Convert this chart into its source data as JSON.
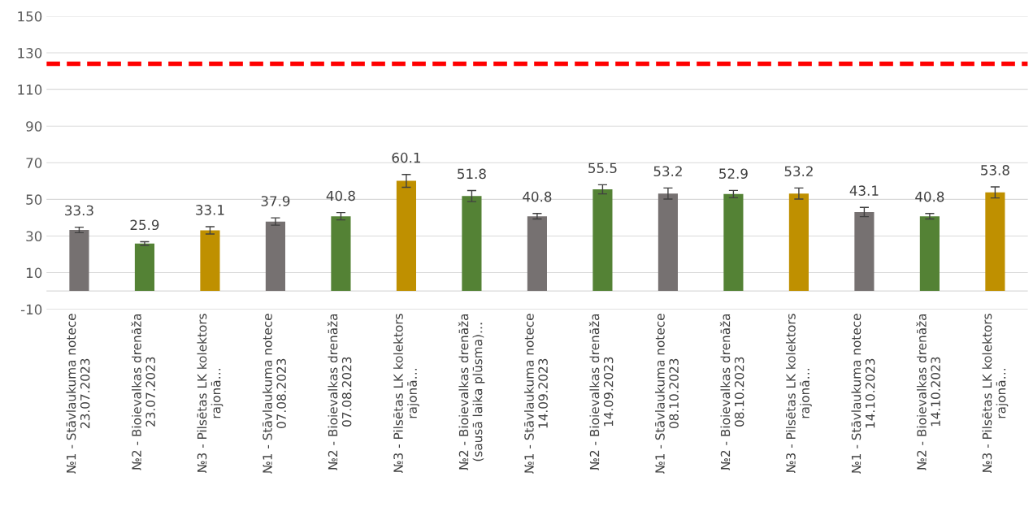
{
  "chart_data": {
    "type": "bar",
    "categories": [
      "№1 - Stāvlaukuma notece\n23.07.2023",
      "№2 - Bioievalkas drenāža\n23.07.2023",
      "№3 - Pilsētas LK kolektors\nrajonā…",
      "№1 - Stāvlaukuma notece\n07.08.2023",
      "№2 - Bioievalkas drenāža\n07.08.2023",
      "№3 - Pilsētas LK kolektors\nrajonā…",
      "№2 - Bioievalkas drenāža\n(sausā laika plūsma)…",
      "№1 - Stāvlaukuma notece\n14.09.2023",
      "№2 - Bioievalkas drenāža\n14.09.2023",
      "№1 - Stāvlaukuma notece\n08.10.2023",
      "№2 - Bioievalkas drenāža\n08.10.2023",
      "№3 - Pilsētas LK kolektors\nrajonā…",
      "№1 - Stāvlaukuma notece\n14.10.2023",
      "№2 - Bioievalkas drenāža\n14.10.2023",
      "№3 - Pilsētas LK kolektors\nrajonā…"
    ],
    "values": [
      33.3,
      25.9,
      33.1,
      37.9,
      40.8,
      60.1,
      51.8,
      40.8,
      55.5,
      53.2,
      52.9,
      53.2,
      43.1,
      40.8,
      53.8
    ],
    "colors": [
      "#767171",
      "#548235",
      "#bf9000",
      "#767171",
      "#548235",
      "#bf9000",
      "#548235",
      "#767171",
      "#548235",
      "#767171",
      "#548235",
      "#bf9000",
      "#767171",
      "#548235",
      "#bf9000"
    ],
    "errors": [
      1.5,
      1,
      2,
      2,
      2,
      3.5,
      3,
      1.5,
      2.5,
      3,
      2,
      3,
      2.5,
      1.5,
      3
    ],
    "data_labels": true,
    "ylim": [
      -10,
      150
    ],
    "yticks": [
      -10,
      10,
      30,
      50,
      70,
      90,
      110,
      130,
      150
    ],
    "grid": "y",
    "ref_lines": [
      {
        "axis": "y",
        "value": 124,
        "color": "#ff0000",
        "line_style": "dashed"
      }
    ]
  }
}
